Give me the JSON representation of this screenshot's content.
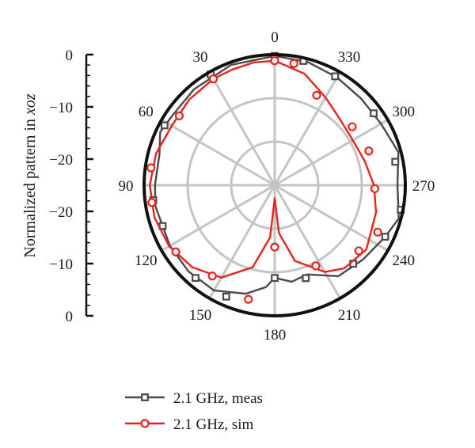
{
  "chart_data": {
    "type": "polar-line",
    "ylabel_prefix": "Normalized pattern in ",
    "ylabel_italic": "xoz",
    "radial_ticks": [
      "0",
      "−10",
      "−20",
      "−20",
      "−10",
      "0"
    ],
    "angle_labels": [
      {
        "angle": 0,
        "label": "0"
      },
      {
        "angle": 30,
        "label": "30"
      },
      {
        "angle": 60,
        "label": "60"
      },
      {
        "angle": 90,
        "label": "90"
      },
      {
        "angle": 120,
        "label": "120"
      },
      {
        "angle": 150,
        "label": "150"
      },
      {
        "angle": 180,
        "label": "180"
      },
      {
        "angle": 210,
        "label": "210"
      },
      {
        "angle": 240,
        "label": "240"
      },
      {
        "angle": 270,
        "label": "270"
      },
      {
        "angle": 300,
        "label": "300"
      },
      {
        "angle": 330,
        "label": "330"
      }
    ],
    "rlim": [
      -30,
      0
    ],
    "grid": true,
    "legend_position": "bottom",
    "series": [
      {
        "name": "2.1 GHz, meas",
        "color": "#4a4a4a",
        "marker": "square",
        "points": [
          [
            0,
            -0.3
          ],
          [
            20,
            -0.6
          ],
          [
            40,
            -1.2
          ],
          [
            55,
            -1.6
          ],
          [
            65,
            -1.0
          ],
          [
            75,
            -2.6
          ],
          [
            90,
            -2.5
          ],
          [
            100,
            -2.2
          ],
          [
            110,
            -2.6
          ],
          [
            120,
            -2.2
          ],
          [
            135,
            -2.0
          ],
          [
            150,
            -2.1
          ],
          [
            165,
            -4.2
          ],
          [
            175,
            -6.5
          ],
          [
            180,
            -8.7
          ],
          [
            190,
            -7.5
          ],
          [
            200,
            -8.2
          ],
          [
            215,
            -4.5
          ],
          [
            230,
            -3.5
          ],
          [
            245,
            -2.0
          ],
          [
            255,
            -0.5
          ],
          [
            270,
            -1.8
          ],
          [
            285,
            -0.6
          ],
          [
            300,
            -1.8
          ],
          [
            315,
            -1.9
          ],
          [
            330,
            -1.4
          ],
          [
            345,
            -0.7
          ],
          [
            360,
            -0.3
          ]
        ],
        "marker_points": [
          [
            0,
            -0.3
          ],
          [
            30,
            -0.6
          ],
          [
            61.5,
            -1.2
          ],
          [
            97,
            -1.9
          ],
          [
            110,
            -2.6
          ],
          [
            139.5,
            -2.0
          ],
          [
            156.5,
            -2.1
          ],
          [
            180,
            -8.7
          ],
          [
            198.5,
            -7.5
          ],
          [
            225,
            -4.5
          ],
          [
            245,
            -2.0
          ],
          [
            259,
            -0.5
          ],
          [
            281,
            -1.8
          ],
          [
            306,
            -1.9
          ],
          [
            331,
            -1.4
          ],
          [
            347,
            -0.7
          ]
        ]
      },
      {
        "name": "2.1 GHz, sim",
        "color": "#e8221c",
        "marker": "circle",
        "points": [
          [
            0,
            -1.4
          ],
          [
            10,
            -1.4
          ],
          [
            20,
            -1.7
          ],
          [
            30,
            -1.8
          ],
          [
            45,
            -2.2
          ],
          [
            60,
            -2.7
          ],
          [
            75,
            -1.8
          ],
          [
            90,
            -1.3
          ],
          [
            105,
            -1.4
          ],
          [
            120,
            -2.0
          ],
          [
            135,
            -3.3
          ],
          [
            150,
            -5.5
          ],
          [
            165,
            -10.5
          ],
          [
            175,
            -18
          ],
          [
            180,
            -27
          ],
          [
            185,
            -19
          ],
          [
            195,
            -12.0
          ],
          [
            210,
            -7.0
          ],
          [
            220,
            -5.1
          ],
          [
            235,
            -4.3
          ],
          [
            255,
            -5.9
          ],
          [
            270,
            -7.2
          ],
          [
            285,
            -8.6
          ],
          [
            300,
            -9.3
          ],
          [
            315,
            -8.7
          ],
          [
            330,
            -6.7
          ],
          [
            345,
            -3.5
          ],
          [
            360,
            -1.4
          ]
        ],
        "marker_points": [
          [
            0,
            -1.4
          ],
          [
            30,
            -1.8
          ],
          [
            54,
            -2.9
          ],
          [
            82,
            -1.3
          ],
          [
            98,
            -1.5
          ],
          [
            124,
            -2.6
          ],
          [
            145.5,
            -4.7
          ],
          [
            167,
            -3.1
          ],
          [
            180,
            -15.8
          ],
          [
            207,
            -9.2
          ],
          [
            232,
            -5.5
          ],
          [
            245.5,
            -4.0
          ],
          [
            268,
            -7.0
          ],
          [
            290,
            -7.0
          ],
          [
            307,
            -7.7
          ],
          [
            335,
            -7.2
          ],
          [
            351,
            -1.7
          ]
        ]
      }
    ]
  }
}
